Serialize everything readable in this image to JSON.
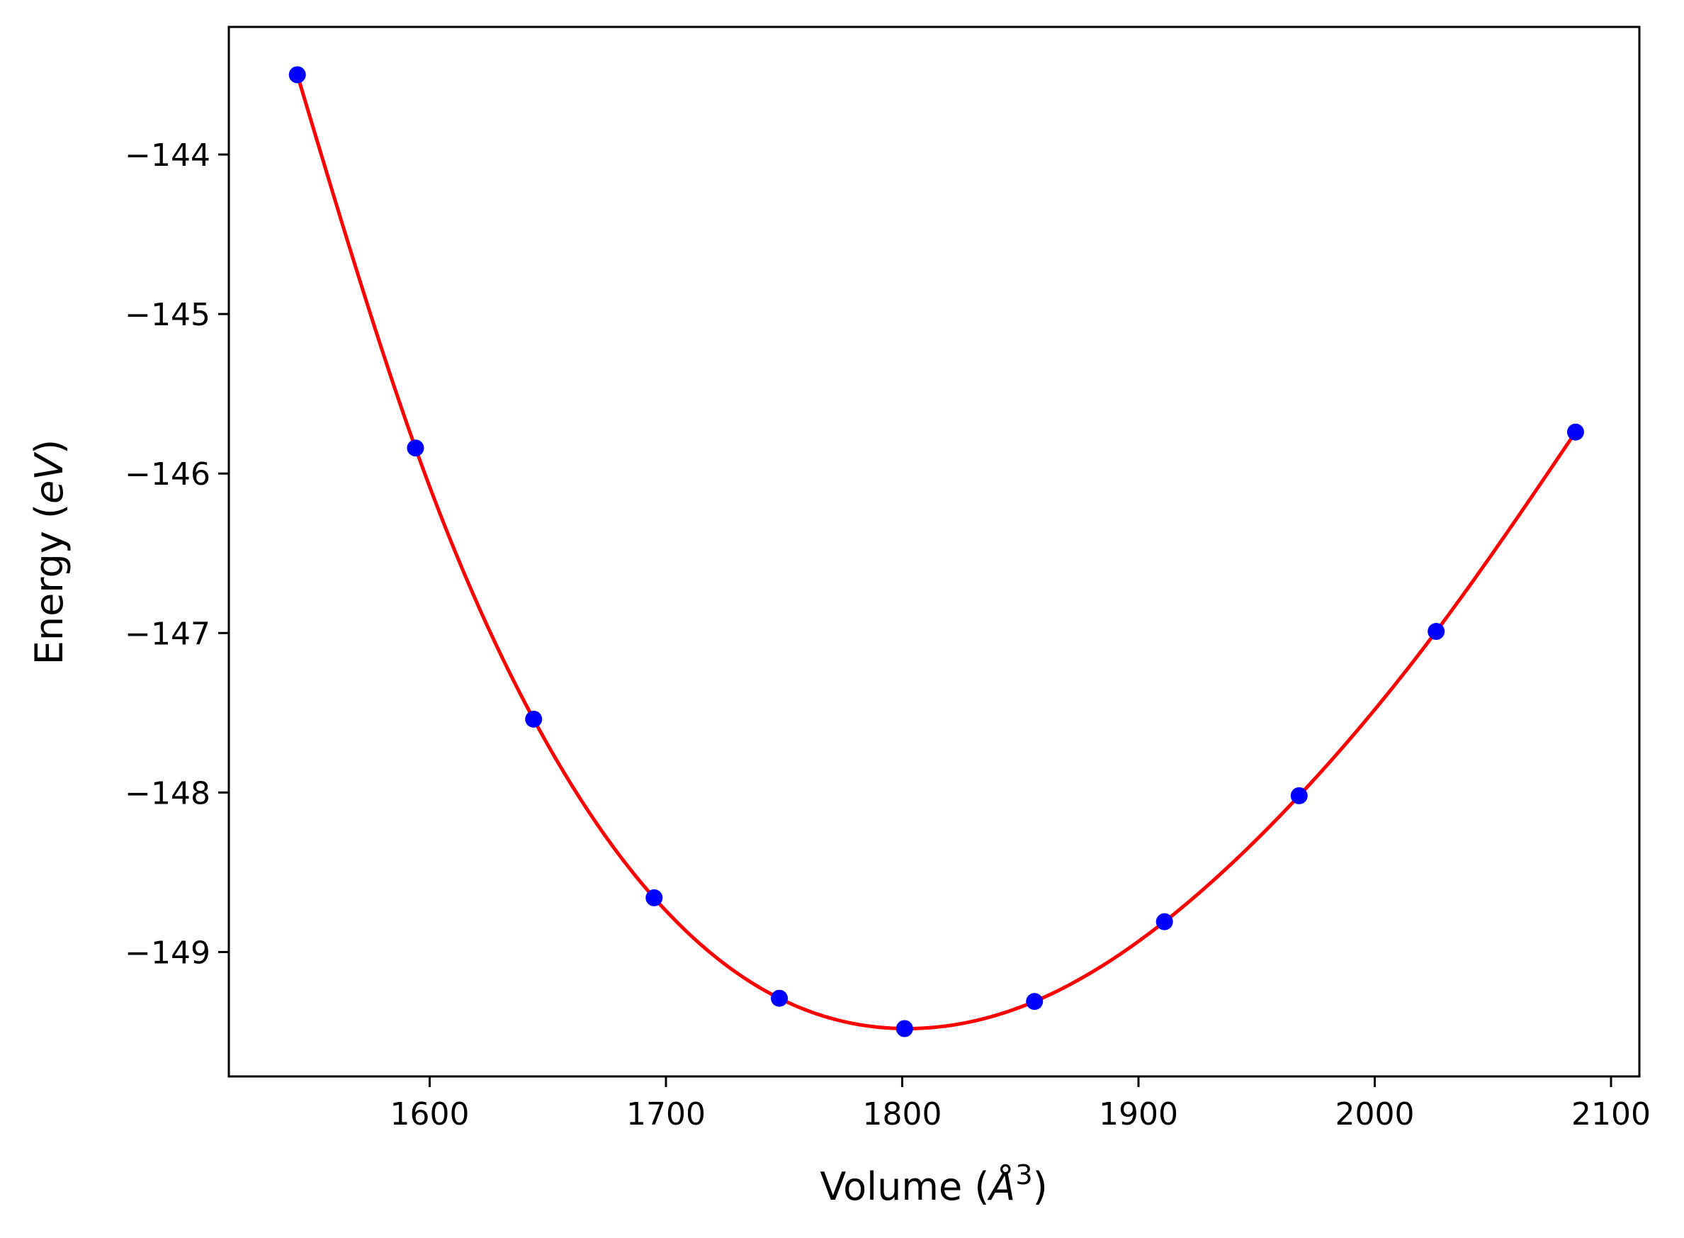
{
  "chart_data": {
    "type": "line",
    "title": "",
    "xlabel": "Volume (",
    "xlabel_unit": "Å",
    "xlabel_sup": "3",
    "xlabel_close": ")",
    "ylabel": "Energy (",
    "ylabel_unit": "eV",
    "ylabel_close": ")",
    "xlim": [
      1515,
      2112
    ],
    "ylim": [
      -149.78,
      -143.2
    ],
    "xticks": [
      1600,
      1700,
      1800,
      1900,
      2000,
      2100
    ],
    "yticks": [
      -144,
      -145,
      -146,
      -147,
      -148,
      -149
    ],
    "xtick_labels": [
      "1600",
      "1700",
      "1800",
      "1900",
      "2000",
      "2100"
    ],
    "ytick_labels": [
      "−144",
      "−145",
      "−146",
      "−147",
      "−148",
      "−149"
    ],
    "grid": false,
    "series": [
      {
        "kind": "points",
        "color": "#0000ff",
        "x": [
          1544,
          1594,
          1644,
          1695,
          1748,
          1801,
          1856,
          1911,
          1968,
          2026,
          2085
        ],
        "y": [
          -143.5,
          -145.84,
          -147.54,
          -148.66,
          -149.29,
          -149.48,
          -149.31,
          -148.81,
          -148.02,
          -146.99,
          -145.74
        ]
      },
      {
        "kind": "fit",
        "color": "#ff0000",
        "x_range": [
          1544,
          2085
        ]
      }
    ]
  }
}
